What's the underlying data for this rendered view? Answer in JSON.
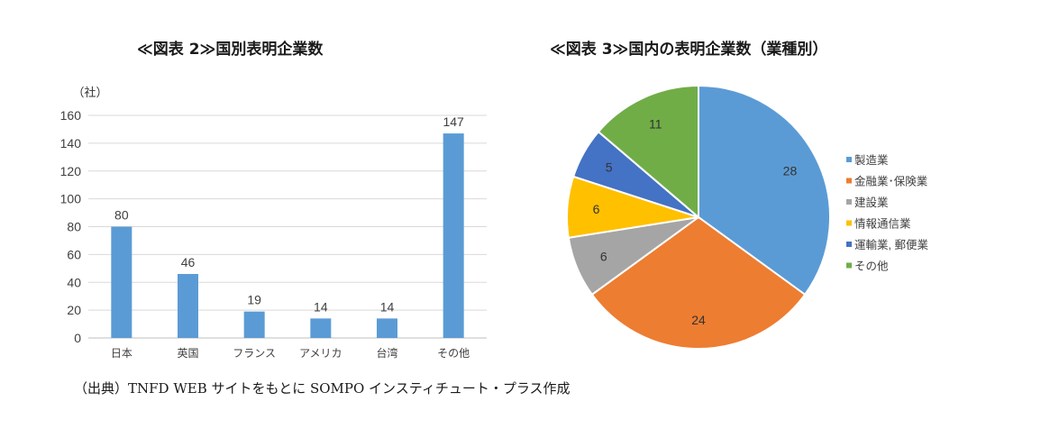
{
  "chart_data": [
    {
      "type": "bar",
      "title": "≪図表 2≫国別表明企業数",
      "unit_label": "（社）",
      "categories": [
        "日本",
        "英国",
        "フランス",
        "アメリカ",
        "台湾",
        "その他"
      ],
      "values": [
        80,
        46,
        19,
        14,
        14,
        147
      ],
      "ylim": [
        0,
        160
      ],
      "yticks": [
        0,
        20,
        40,
        60,
        80,
        100,
        120,
        140,
        160
      ],
      "grid": true,
      "color": "#5b9bd5"
    },
    {
      "type": "pie",
      "title": "≪図表 3≫国内の表明企業数（業種別）",
      "labels": [
        "製造業",
        "金融業･保険業",
        "建設業",
        "情報通信業",
        "運輸業, 郵便業",
        "その他"
      ],
      "values": [
        28,
        24,
        6,
        6,
        5,
        11
      ],
      "colors": [
        "#5b9bd5",
        "#ed7d31",
        "#a5a5a5",
        "#ffc000",
        "#4472c4",
        "#70ad47"
      ],
      "legend_position": "right"
    }
  ],
  "source": "（出典）TNFD WEB サイトをもとに SOMPO インスティチュート・プラス作成"
}
